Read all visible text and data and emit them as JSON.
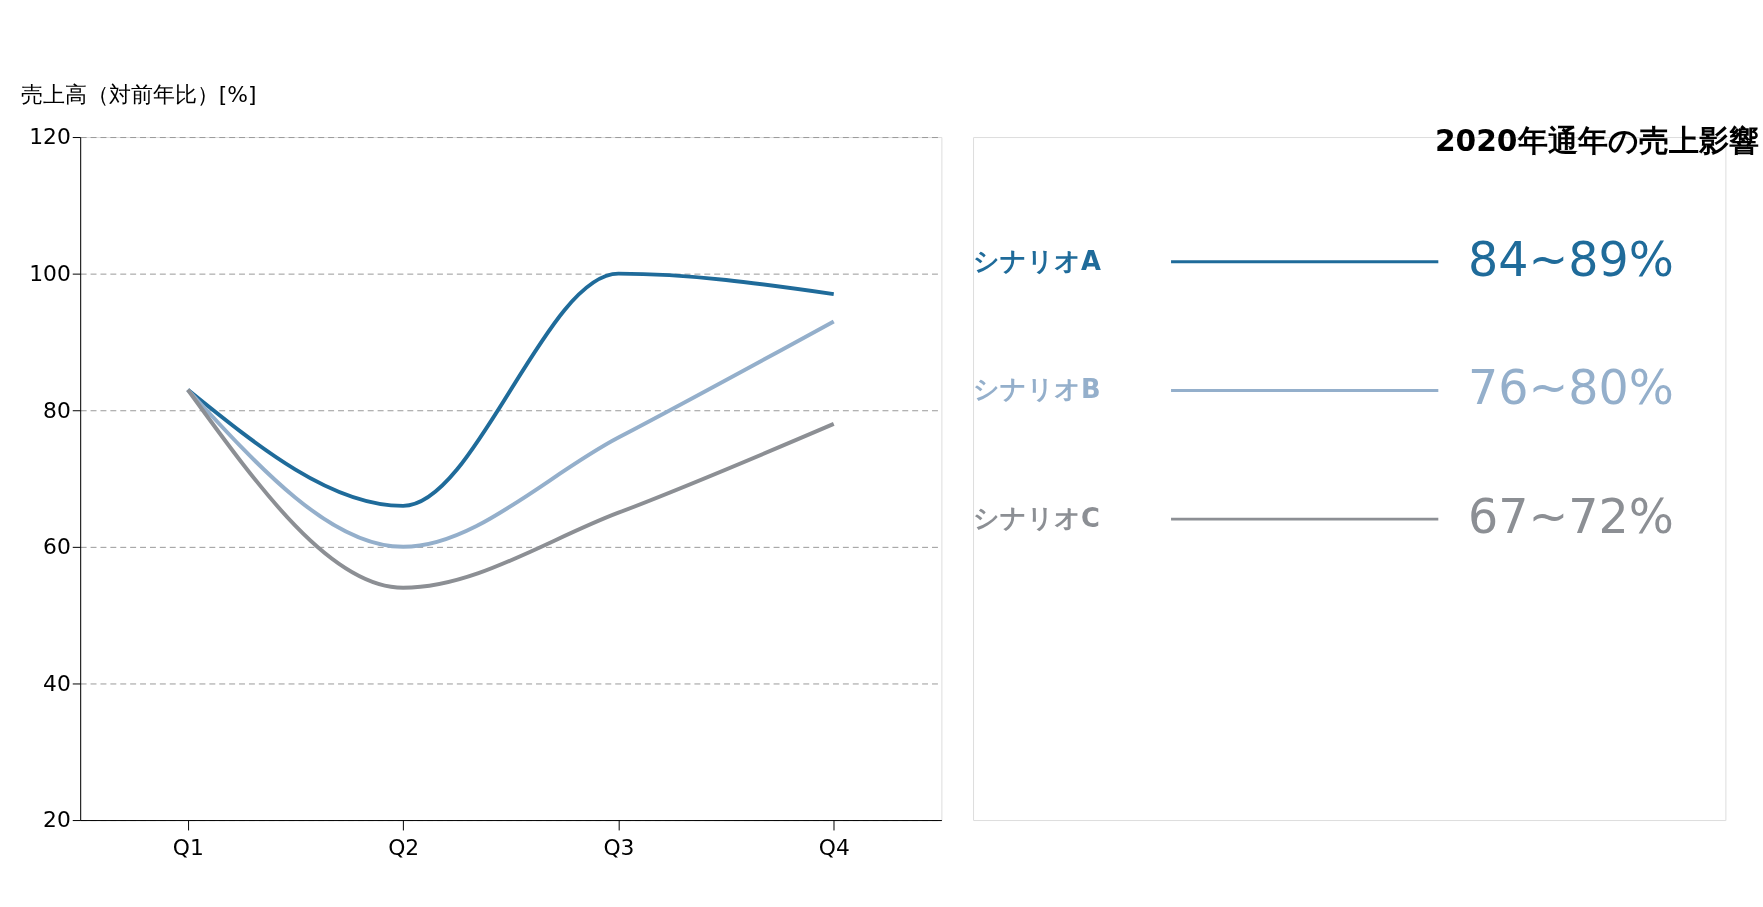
{
  "chart_data": {
    "type": "line",
    "ylabel": "売上高（対前年比）[%]",
    "categories": [
      "Q1",
      "Q2",
      "Q3",
      "Q4"
    ],
    "series": [
      {
        "name": "シナリオA",
        "color": "#1f6b9a",
        "values": [
          83,
          66,
          100,
          97
        ]
      },
      {
        "name": "シナリオB",
        "color": "#94afcb",
        "values": [
          83,
          60,
          76,
          93
        ]
      },
      {
        "name": "シナリオC",
        "color": "#8c8f94",
        "values": [
          83,
          54,
          65,
          78
        ]
      }
    ],
    "ylim": [
      20,
      120
    ],
    "yticks": [
      20,
      40,
      60,
      80,
      100,
      120
    ],
    "grid": "y",
    "line_style": "solid",
    "marker": "none",
    "legend": "right",
    "annotations": [
      "2020年通年の売上影響",
      "84~89%",
      "76~80%",
      "67~72%"
    ]
  }
}
